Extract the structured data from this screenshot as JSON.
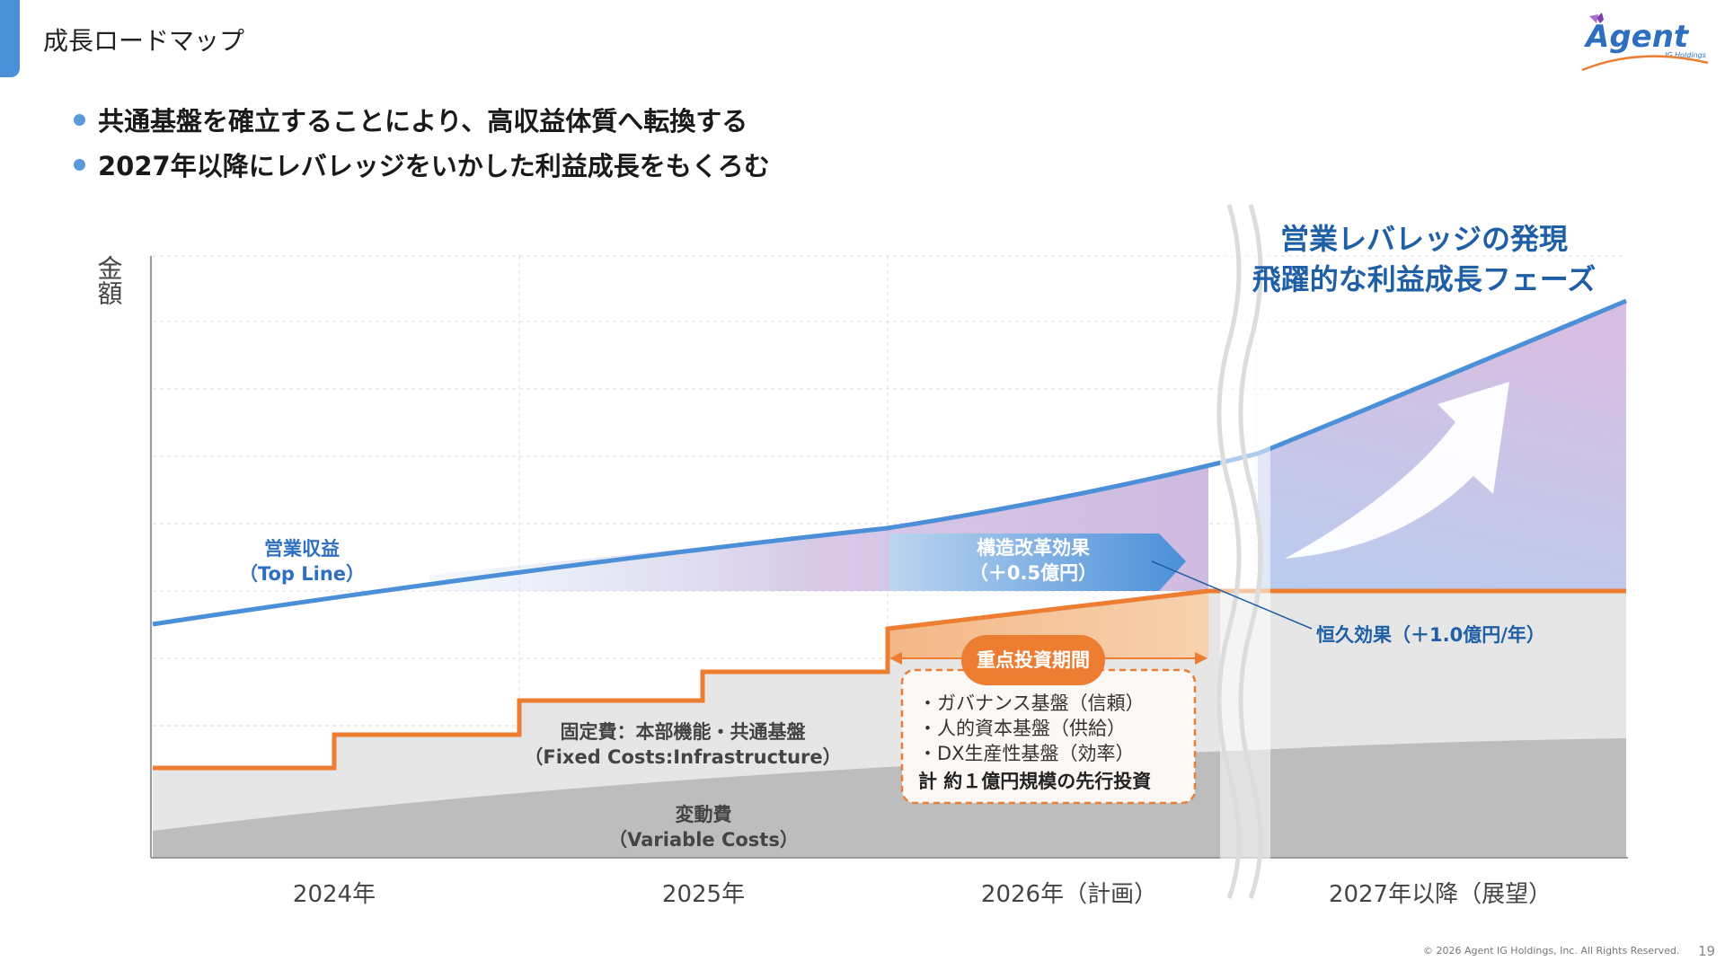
{
  "page": {
    "title": "成長ロードマップ",
    "page_number": "19",
    "copyright": "© 2026 Agent IG Holdings, Inc. All Rights Reserved."
  },
  "logo": {
    "name": "Agent",
    "sub": "IG Holdings"
  },
  "bullets": [
    "共通基盤を確立することにより、高収益体質へ転換する",
    "2027年以降にレバレッジをいかした利益成長をもくろむ"
  ],
  "diagram": {
    "y_axis_label": "金額",
    "x_labels": [
      "2024年",
      "2025年",
      "2026年（計画）",
      "2027年以降（展望）"
    ],
    "headline": [
      "営業レバレッジの発現",
      "飛躍的な利益成長フェーズ"
    ],
    "topline": [
      "営業収益",
      "（Top Line）"
    ],
    "reform": [
      "構造改革効果",
      "（＋0.5億円）"
    ],
    "permanent": "恒久効果（＋1.0億円/年）",
    "fixed": [
      "固定費：本部機能・共通基盤",
      "（Fixed Costs:Infrastructure）"
    ],
    "variable": [
      "変動費",
      "（Variable Costs）"
    ],
    "invest_badge": "重点投資期間",
    "invest_items": [
      "・ガバナンス基盤（信頼）",
      "・人的資本基盤（供給）",
      "・DX生産性基盤（効率）"
    ],
    "invest_total": "計 約１億円規模の先行投資",
    "colors": {
      "revenue": "#4a8fd8",
      "fixed_cost": "#ed7d31",
      "variable_fill": "#bdbdbd",
      "fixed_fill": "#e6e6e6",
      "headline": "#1f5fa6",
      "profit_purple": "#c9b3dc"
    }
  }
}
